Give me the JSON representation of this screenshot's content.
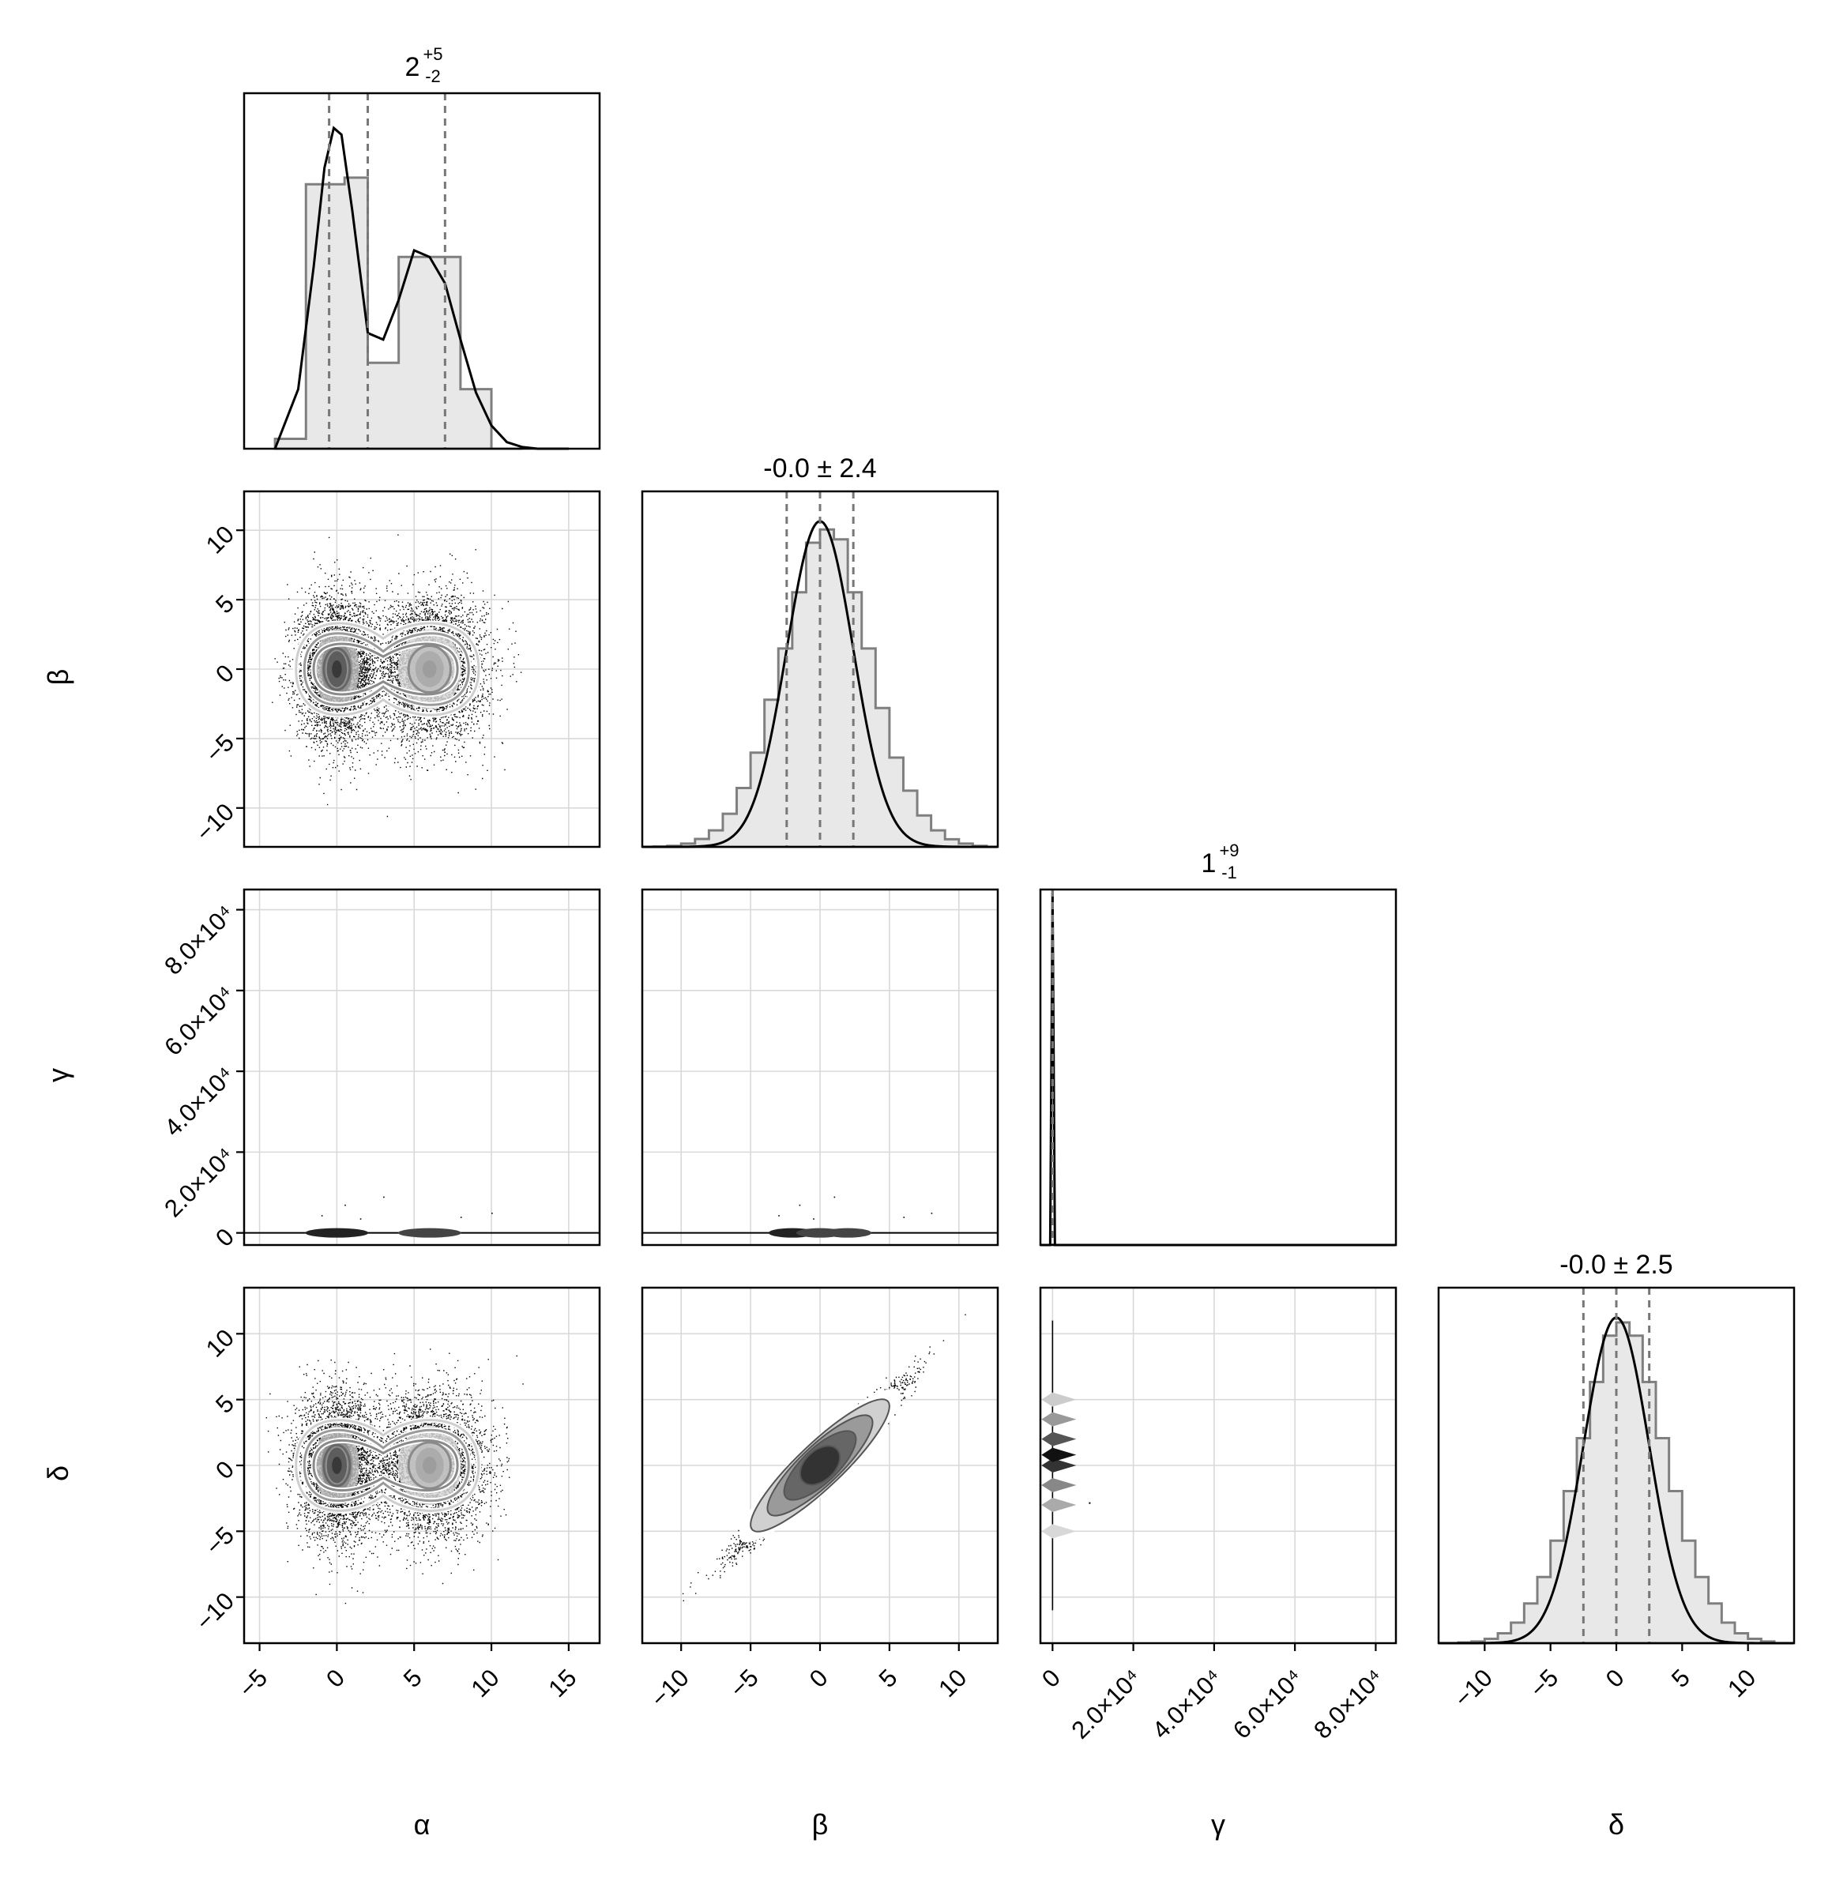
{
  "chart_data": {
    "type": "corner",
    "parameters": [
      "α",
      "β",
      "γ",
      "δ"
    ],
    "axis_labels": [
      "α",
      "β",
      "γ",
      "δ"
    ],
    "ranges": {
      "α": [
        -6,
        17
      ],
      "β": [
        -12.8,
        12.8
      ],
      "γ": [
        -3000,
        85000
      ],
      "δ": [
        -13.5,
        13.5
      ]
    },
    "ticks": {
      "α": [
        -5,
        0,
        5,
        10,
        15
      ],
      "β": [
        -10,
        -5,
        0,
        5,
        10
      ],
      "γ": [
        0,
        20000,
        40000,
        60000,
        80000
      ],
      "δ": [
        -10,
        -5,
        0,
        5,
        10
      ]
    },
    "tick_labels": {
      "α": [
        "−5",
        "0",
        "5",
        "10",
        "15"
      ],
      "β": [
        "−10",
        "−5",
        "0",
        "5",
        "10"
      ],
      "γ": [
        "0",
        "2.0×10⁴",
        "4.0×10⁴",
        "6.0×10⁴",
        "8.0×10⁴"
      ],
      "δ": [
        "−10",
        "−5",
        "0",
        "5",
        "10"
      ]
    },
    "grid": true,
    "diagonal": [
      {
        "param": "α",
        "title": "2",
        "title_sup": "+5",
        "title_sub": "-2",
        "quantiles": [
          -0.5,
          2,
          7
        ],
        "hist_bins": [
          -4,
          -2,
          0.5,
          2,
          4,
          8,
          10,
          12
        ],
        "hist_heights": [
          0.03,
          0.8,
          0.82,
          0.26,
          0.58,
          0.18,
          0.0
        ],
        "kde_x": [
          -4,
          -2.5,
          -1.5,
          -0.8,
          -0.2,
          0.3,
          1,
          2,
          3,
          4,
          5,
          6,
          7,
          8,
          9,
          10,
          11,
          12,
          13,
          15
        ],
        "kde_y": [
          0,
          0.18,
          0.55,
          0.85,
          0.97,
          0.95,
          0.72,
          0.35,
          0.33,
          0.45,
          0.6,
          0.58,
          0.5,
          0.33,
          0.17,
          0.07,
          0.02,
          0.005,
          0,
          0
        ]
      },
      {
        "param": "β",
        "title": "-0.0 ± 2.4",
        "quantiles": [
          -2.4,
          0,
          2.4
        ],
        "hist_bins": [
          -12,
          -11,
          -10,
          -9,
          -8,
          -7,
          -6,
          -5,
          -4,
          -3,
          -2,
          -1,
          0,
          1,
          2,
          3,
          4,
          5,
          6,
          7,
          8,
          9,
          10,
          11,
          12
        ],
        "hist_heights": [
          0.001,
          0.003,
          0.01,
          0.024,
          0.05,
          0.1,
          0.178,
          0.285,
          0.445,
          0.6,
          0.77,
          0.92,
          0.96,
          0.93,
          0.77,
          0.6,
          0.42,
          0.27,
          0.17,
          0.095,
          0.05,
          0.023,
          0.01,
          0.003
        ],
        "kde_sigma": 2.4,
        "kde_mu": 0
      },
      {
        "param": "γ",
        "title": "1",
        "title_sup": "+9",
        "title_sub": "-1",
        "quantiles": [
          0,
          1,
          10
        ],
        "spike_at": 0
      },
      {
        "param": "δ",
        "title": "-0.0 ± 2.5",
        "quantiles": [
          -2.5,
          0,
          2.5
        ],
        "hist_bins": [
          -12,
          -11,
          -10,
          -9,
          -8,
          -7,
          -6,
          -5,
          -4,
          -3,
          -2,
          -1,
          0,
          1,
          2,
          3,
          4,
          5,
          6,
          7,
          8,
          9,
          10,
          11,
          12
        ],
        "hist_heights": [
          0.002,
          0.005,
          0.013,
          0.03,
          0.062,
          0.12,
          0.2,
          0.31,
          0.46,
          0.62,
          0.79,
          0.93,
          0.97,
          0.93,
          0.79,
          0.62,
          0.46,
          0.31,
          0.2,
          0.12,
          0.062,
          0.03,
          0.013,
          0.005
        ],
        "kde_sigma": 2.5,
        "kde_mu": 0
      }
    ],
    "pairs": [
      {
        "x": "α",
        "y": "β",
        "correlation": 0,
        "modes": [
          {
            "x": 0,
            "y": 0,
            "sx": 1.2,
            "sy": 2.4
          },
          {
            "x": 6,
            "y": 0,
            "sx": 1.7,
            "sy": 2.4
          }
        ]
      },
      {
        "x": "α",
        "y": "γ",
        "correlation": 0,
        "note": "concentrated near γ = 0"
      },
      {
        "x": "β",
        "y": "γ",
        "correlation": 0,
        "note": "concentrated near γ = 0"
      },
      {
        "x": "α",
        "y": "δ",
        "correlation": 0,
        "modes": [
          {
            "x": 0,
            "y": 0,
            "sx": 1.2,
            "sy": 2.5
          },
          {
            "x": 6,
            "y": 0,
            "sx": 1.7,
            "sy": 2.5
          }
        ]
      },
      {
        "x": "β",
        "y": "δ",
        "correlation": 0.97
      },
      {
        "x": "γ",
        "y": "δ",
        "correlation": 0,
        "note": "concentrated near γ = 0"
      }
    ]
  }
}
